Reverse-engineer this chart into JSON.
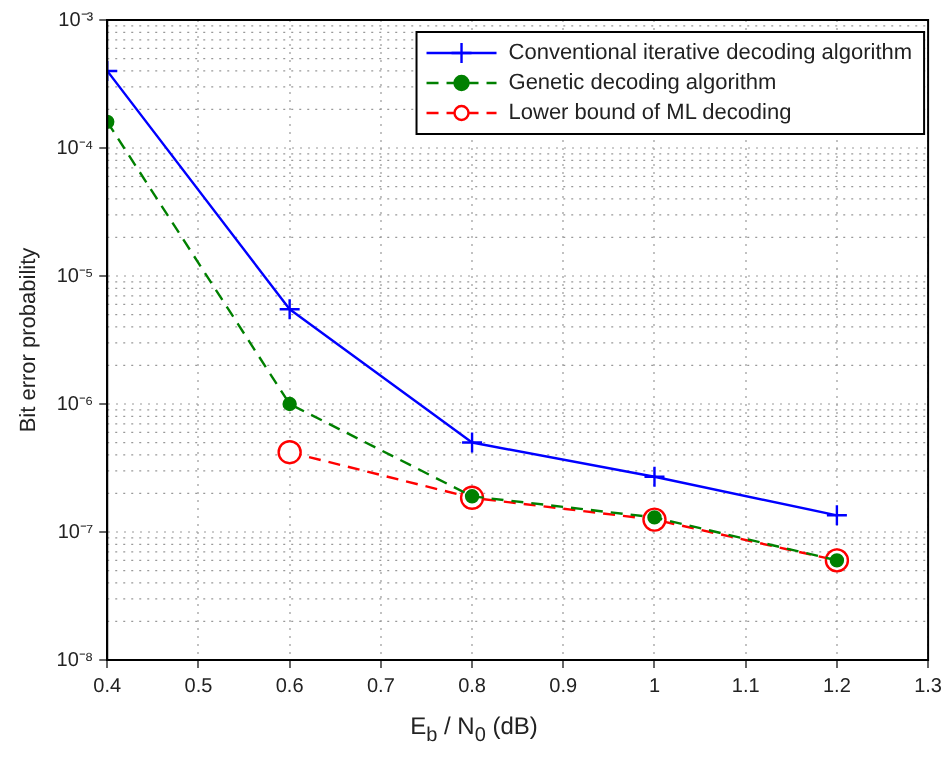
{
  "chart_data": {
    "type": "line",
    "xlabel": "E$_{b}$ / N$_{0}$ (dB)",
    "ylabel": "Bit error probability",
    "x": [
      0.4,
      0.6,
      0.8,
      1.0,
      1.2
    ],
    "series": [
      {
        "name": "Conventional iterative decoding algorithm",
        "color": "#0000ff",
        "marker": "cross",
        "line_style": "solid",
        "values": [
          0.0004,
          5.5e-06,
          5e-07,
          2.7e-07,
          1.35e-07
        ]
      },
      {
        "name": "Genetic decoding algorithm",
        "color": "#008000",
        "marker": "circle",
        "line_style": "dashed",
        "values": [
          0.00016,
          1e-06,
          1.9e-07,
          1.3e-07,
          6e-08
        ]
      },
      {
        "name": "Lower bound of ML decoding",
        "color": "#ff0000",
        "marker": "circle",
        "line_style": "dashed",
        "values": [
          null,
          4.2e-07,
          1.85e-07,
          1.25e-07,
          6e-08
        ]
      }
    ],
    "log": "y",
    "xlim": [
      0.4,
      1.3
    ],
    "xticks": [
      0.4,
      0.5,
      0.6,
      0.7,
      0.8,
      0.9,
      1,
      1.1,
      1.2,
      1.3
    ],
    "ylim": [
      1e-08,
      0.001
    ],
    "yticks": [
      {
        "value": 1e-08,
        "label": "10⁻⁸"
      },
      {
        "value": 1e-07,
        "label": "10⁻⁷"
      },
      {
        "value": 1e-06,
        "label": "10⁻⁶"
      },
      {
        "value": 1e-05,
        "label": "10⁻⁵"
      },
      {
        "value": 0.0001,
        "label": "10⁻⁴"
      },
      {
        "value": 0.001,
        "label": "10⁻³"
      }
    ],
    "grid": true,
    "legend": "top right"
  }
}
